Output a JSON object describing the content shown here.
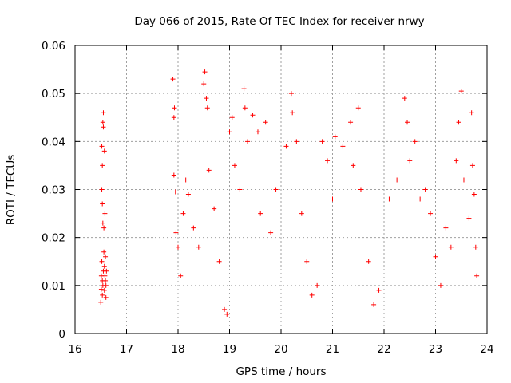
{
  "colors": {
    "series": "#ff0000",
    "grid": "#a0a0a0",
    "axis": "#000000",
    "background": "#ffffff"
  },
  "chart_data": {
    "type": "scatter",
    "title": "Day 066 of 2015, Rate Of TEC Index for receiver nrwy",
    "xlabel": "GPS time / hours",
    "ylabel": "ROTI / TECUs",
    "xlim": [
      16,
      24
    ],
    "ylim": [
      0,
      0.06
    ],
    "x_ticks": [
      "16",
      "17",
      "18",
      "19",
      "20",
      "21",
      "22",
      "23",
      "24"
    ],
    "y_ticks": [
      "0",
      "0.01",
      "0.02",
      "0.03",
      "0.04",
      "0.05",
      "0.06"
    ],
    "grid": true,
    "marker": "+",
    "series": [
      {
        "name": "ROTI",
        "note": "representative sample of a dense scatter; two segments 16.5-16.6 h and 17.9-23.8 h, no data 16.6-17.9 h",
        "points": [
          [
            16.5,
            0.0065
          ],
          [
            16.51,
            0.0092
          ],
          [
            16.51,
            0.012
          ],
          [
            16.52,
            0.015
          ],
          [
            16.52,
            0.03
          ],
          [
            16.52,
            0.039
          ],
          [
            16.53,
            0.008
          ],
          [
            16.53,
            0.011
          ],
          [
            16.53,
            0.035
          ],
          [
            16.53,
            0.027
          ],
          [
            16.54,
            0.023
          ],
          [
            16.54,
            0.044
          ],
          [
            16.54,
            0.01
          ],
          [
            16.55,
            0.046
          ],
          [
            16.55,
            0.013
          ],
          [
            16.55,
            0.043
          ],
          [
            16.56,
            0.017
          ],
          [
            16.56,
            0.022
          ],
          [
            16.57,
            0.014
          ],
          [
            16.57,
            0.038
          ],
          [
            16.57,
            0.009
          ],
          [
            16.58,
            0.025
          ],
          [
            16.58,
            0.012
          ],
          [
            16.59,
            0.011
          ],
          [
            16.59,
            0.016
          ],
          [
            16.6,
            0.01
          ],
          [
            16.6,
            0.0075
          ],
          [
            16.61,
            0.013
          ],
          [
            17.9,
            0.053
          ],
          [
            17.92,
            0.045
          ],
          [
            17.92,
            0.033
          ],
          [
            17.93,
            0.047
          ],
          [
            17.95,
            0.0295
          ],
          [
            17.96,
            0.021
          ],
          [
            18.0,
            0.018
          ],
          [
            18.05,
            0.012
          ],
          [
            18.1,
            0.025
          ],
          [
            18.15,
            0.032
          ],
          [
            18.2,
            0.029
          ],
          [
            18.3,
            0.022
          ],
          [
            18.4,
            0.018
          ],
          [
            18.5,
            0.052
          ],
          [
            18.52,
            0.0545
          ],
          [
            18.55,
            0.049
          ],
          [
            18.57,
            0.047
          ],
          [
            18.6,
            0.034
          ],
          [
            18.7,
            0.026
          ],
          [
            18.8,
            0.015
          ],
          [
            18.9,
            0.005
          ],
          [
            18.95,
            0.004
          ],
          [
            19.0,
            0.042
          ],
          [
            19.05,
            0.045
          ],
          [
            19.1,
            0.035
          ],
          [
            19.2,
            0.03
          ],
          [
            19.28,
            0.051
          ],
          [
            19.3,
            0.047
          ],
          [
            19.35,
            0.04
          ],
          [
            19.45,
            0.0455
          ],
          [
            19.55,
            0.042
          ],
          [
            19.6,
            0.025
          ],
          [
            19.7,
            0.044
          ],
          [
            19.8,
            0.021
          ],
          [
            19.9,
            0.03
          ],
          [
            20.1,
            0.039
          ],
          [
            20.2,
            0.05
          ],
          [
            20.22,
            0.046
          ],
          [
            20.3,
            0.04
          ],
          [
            20.4,
            0.025
          ],
          [
            20.5,
            0.015
          ],
          [
            20.6,
            0.008
          ],
          [
            20.7,
            0.01
          ],
          [
            20.8,
            0.04
          ],
          [
            20.9,
            0.036
          ],
          [
            21.0,
            0.028
          ],
          [
            21.05,
            0.041
          ],
          [
            21.2,
            0.039
          ],
          [
            21.35,
            0.044
          ],
          [
            21.4,
            0.035
          ],
          [
            21.5,
            0.047
          ],
          [
            21.55,
            0.03
          ],
          [
            21.7,
            0.015
          ],
          [
            21.8,
            0.006
          ],
          [
            21.9,
            0.009
          ],
          [
            22.1,
            0.028
          ],
          [
            22.25,
            0.032
          ],
          [
            22.4,
            0.049
          ],
          [
            22.45,
            0.044
          ],
          [
            22.5,
            0.036
          ],
          [
            22.6,
            0.04
          ],
          [
            22.7,
            0.028
          ],
          [
            22.8,
            0.03
          ],
          [
            22.9,
            0.025
          ],
          [
            23.0,
            0.016
          ],
          [
            23.1,
            0.01
          ],
          [
            23.2,
            0.022
          ],
          [
            23.3,
            0.018
          ],
          [
            23.4,
            0.036
          ],
          [
            23.45,
            0.044
          ],
          [
            23.5,
            0.0505
          ],
          [
            23.55,
            0.032
          ],
          [
            23.65,
            0.024
          ],
          [
            23.7,
            0.046
          ],
          [
            23.72,
            0.035
          ],
          [
            23.75,
            0.029
          ],
          [
            23.78,
            0.018
          ],
          [
            23.8,
            0.012
          ]
        ]
      }
    ]
  }
}
